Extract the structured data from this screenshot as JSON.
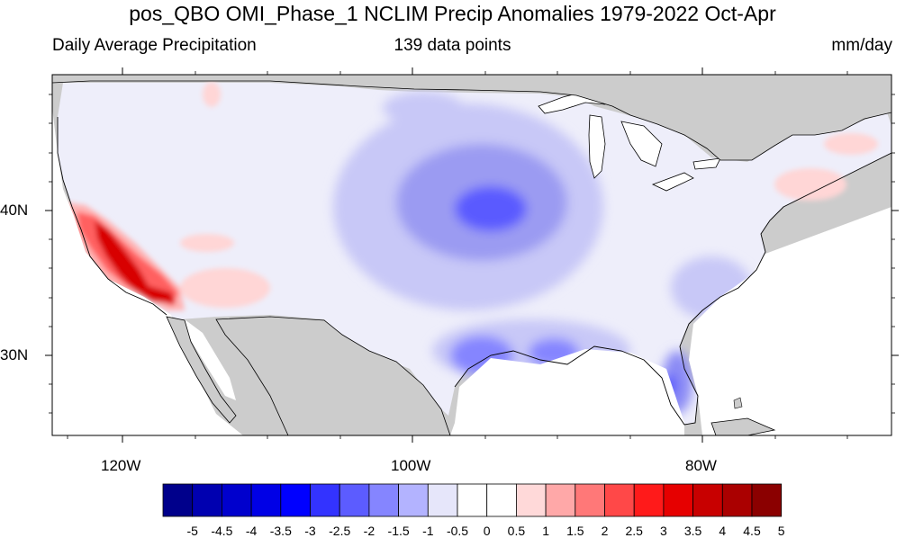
{
  "header": {
    "title": "pos_QBO OMI_Phase_1 NCLIM Precip Anomalies 1979-2022 Oct-Apr",
    "left_subtitle": "Daily Average Precipitation",
    "center_subtitle": "139 data points",
    "right_subtitle": "mm/day"
  },
  "axes": {
    "lat_labels": [
      "40N",
      "30N"
    ],
    "lon_labels": [
      "120W",
      "100W",
      "80W"
    ]
  },
  "colorbar": {
    "labels": [
      "-5",
      "-4.5",
      "-4",
      "-3.5",
      "-3",
      "-2.5",
      "-2",
      "-1.5",
      "-1",
      "-0.5",
      "0",
      "0.5",
      "1",
      "1.5",
      "2",
      "2.5",
      "3",
      "3.5",
      "4",
      "4.5",
      "5"
    ],
    "colors": [
      "#00008b",
      "#0000b0",
      "#0000cd",
      "#0000e6",
      "#0000ff",
      "#3333ff",
      "#5c5cff",
      "#8585ff",
      "#b3b3ff",
      "#e6e6fa",
      "#ffffff",
      "#ffffff",
      "#ffd9d9",
      "#ffa8a8",
      "#ff7878",
      "#ff4848",
      "#ff1a1a",
      "#e60000",
      "#c80000",
      "#aa0000",
      "#8b0000"
    ]
  },
  "map_colors": {
    "land_gray": "#cccccc",
    "water": "#ffffff",
    "anomaly_base": "#e6e6fa"
  }
}
